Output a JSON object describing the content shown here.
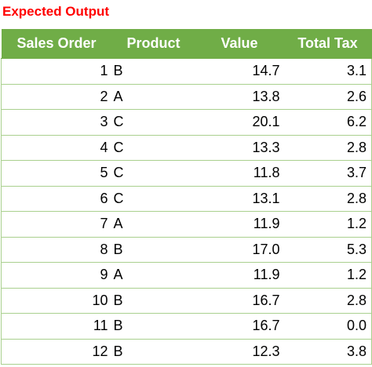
{
  "caption": "Expected Output",
  "colors": {
    "caption": "#ff0000",
    "header_background": "#70ad47",
    "header_text": "#ffffff",
    "row_border": "#a9d08e"
  },
  "table": {
    "headers": [
      "Sales Order",
      "Product",
      "Value",
      "Total Tax"
    ],
    "rows": [
      {
        "order": "1",
        "product": "B",
        "value": "14.7",
        "tax": "3.1"
      },
      {
        "order": "2",
        "product": "A",
        "value": "13.8",
        "tax": "2.6"
      },
      {
        "order": "3",
        "product": "C",
        "value": "20.1",
        "tax": "6.2"
      },
      {
        "order": "4",
        "product": "C",
        "value": "13.3",
        "tax": "2.8"
      },
      {
        "order": "5",
        "product": "C",
        "value": "11.8",
        "tax": "3.7"
      },
      {
        "order": "6",
        "product": "C",
        "value": "13.1",
        "tax": "2.8"
      },
      {
        "order": "7",
        "product": "A",
        "value": "11.9",
        "tax": "1.2"
      },
      {
        "order": "8",
        "product": "B",
        "value": "17.0",
        "tax": "5.3"
      },
      {
        "order": "9",
        "product": "A",
        "value": "11.9",
        "tax": "1.2"
      },
      {
        "order": "10",
        "product": "B",
        "value": "16.7",
        "tax": "2.8"
      },
      {
        "order": "11",
        "product": "B",
        "value": "16.7",
        "tax": "0.0"
      },
      {
        "order": "12",
        "product": "B",
        "value": "12.3",
        "tax": "3.8"
      }
    ]
  }
}
